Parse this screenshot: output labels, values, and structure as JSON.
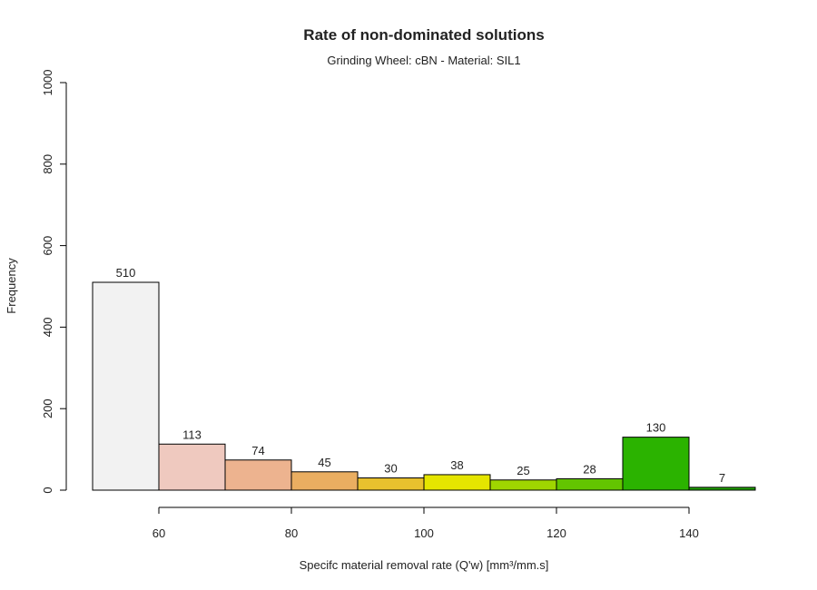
{
  "chart_data": {
    "type": "bar",
    "title": "Rate of non-dominated solutions",
    "subtitle": "Grinding Wheel: cBN - Material: SIL1",
    "xlabel": "Specifc material removal rate (Q'w) [mm³/mm.s]",
    "ylabel": "Frequency",
    "xlim": [
      50,
      150
    ],
    "ylim": [
      0,
      1000
    ],
    "x_ticks": [
      60,
      80,
      100,
      120,
      140
    ],
    "y_ticks": [
      0,
      200,
      400,
      600,
      800,
      1000
    ],
    "bins": [
      {
        "start": 50,
        "end": 60,
        "value": 510,
        "color": "#f2f2f2"
      },
      {
        "start": 60,
        "end": 70,
        "value": 113,
        "color": "#efc9bf"
      },
      {
        "start": 70,
        "end": 80,
        "value": 74,
        "color": "#edb38f"
      },
      {
        "start": 80,
        "end": 90,
        "value": 45,
        "color": "#eaae61"
      },
      {
        "start": 90,
        "end": 100,
        "value": 30,
        "color": "#e8c12e"
      },
      {
        "start": 100,
        "end": 110,
        "value": 38,
        "color": "#e5e500"
      },
      {
        "start": 110,
        "end": 120,
        "value": 25,
        "color": "#9fd600"
      },
      {
        "start": 120,
        "end": 130,
        "value": 28,
        "color": "#63c500"
      },
      {
        "start": 130,
        "end": 140,
        "value": 130,
        "color": "#2bb300"
      },
      {
        "start": 140,
        "end": 150,
        "value": 7,
        "color": "#1f9e00"
      }
    ],
    "grid": false
  }
}
